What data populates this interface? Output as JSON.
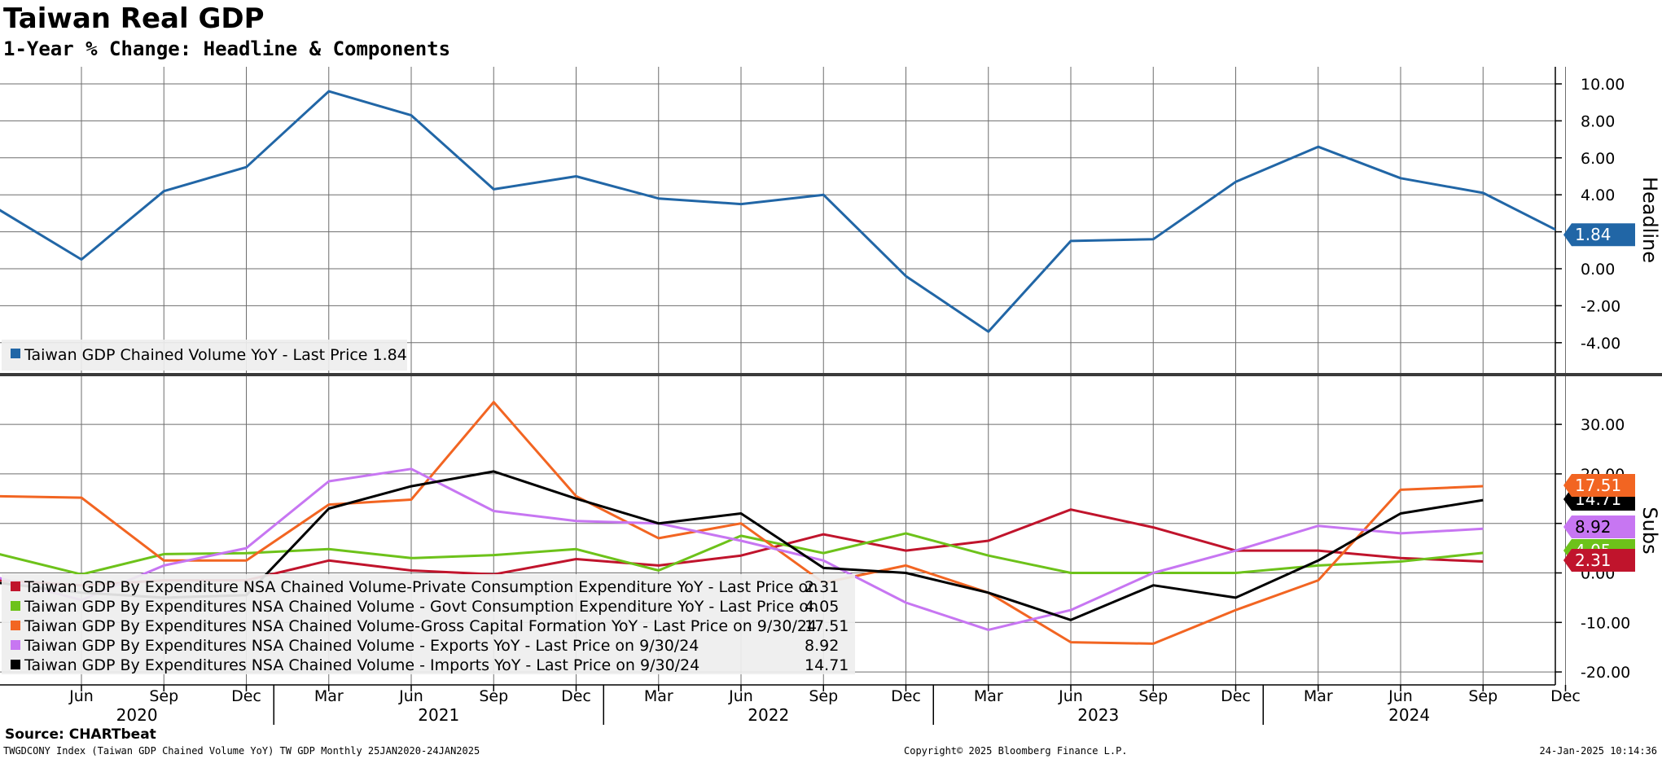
{
  "header": {
    "title": "Taiwan Real GDP",
    "subtitle": "1-Year % Change: Headline & Components"
  },
  "footer": {
    "source": "Source: CHARTbeat",
    "index_info": "TWGDCONY Index (Taiwan GDP Chained Volume YoY) TW GDP  Monthly 25JAN2020-24JAN2025",
    "copyright": "Copyright© 2025 Bloomberg Finance L.P.",
    "timestamp": "24-Jan-2025 10:14:36"
  },
  "chart_data": [
    {
      "type": "line",
      "panel": "top",
      "ylabel": "Headline",
      "ylim": [
        -5,
        10.8
      ],
      "yticks": [
        10,
        8,
        6,
        4,
        2,
        0,
        -2,
        -4
      ],
      "ytick_labels": [
        "10.00",
        "8.00",
        "6.00",
        "4.00",
        "2.00",
        "0.00",
        "-2.00",
        "-4.00"
      ],
      "grid": true,
      "legend_placement": "bottom-left",
      "x": [
        "2020-03",
        "2020-06",
        "2020-09",
        "2020-12",
        "2021-03",
        "2021-06",
        "2021-09",
        "2021-12",
        "2022-03",
        "2022-06",
        "2022-09",
        "2022-12",
        "2023-03",
        "2023-06",
        "2023-09",
        "2023-12",
        "2024-03",
        "2024-06",
        "2024-09",
        "2024-12"
      ],
      "series": [
        {
          "name": "Taiwan GDP Chained Volume YoY",
          "legend_text": "Taiwan GDP Chained Volume YoY - Last Price 1.84",
          "color": "#2166a6",
          "last_label": "1.84",
          "values": [
            3.2,
            0.5,
            4.2,
            5.5,
            9.6,
            8.3,
            4.3,
            5.0,
            3.8,
            3.5,
            4.0,
            -0.4,
            -3.4,
            1.5,
            1.6,
            4.7,
            6.6,
            4.9,
            4.1,
            1.84
          ]
        }
      ]
    },
    {
      "type": "line",
      "panel": "bottom",
      "ylabel": "Subs",
      "ylim": [
        -22,
        36
      ],
      "yticks": [
        30,
        20,
        10,
        0,
        -10,
        -20
      ],
      "ytick_labels": [
        "30.00",
        "20.00",
        "10.00",
        "0.00",
        "-10.00",
        "-20.00"
      ],
      "grid": true,
      "legend_placement": "bottom-left",
      "x": [
        "2020-03",
        "2020-06",
        "2020-09",
        "2020-12",
        "2021-03",
        "2021-06",
        "2021-09",
        "2021-12",
        "2022-03",
        "2022-06",
        "2022-09",
        "2022-12",
        "2023-03",
        "2023-06",
        "2023-09",
        "2023-12",
        "2024-03",
        "2024-06",
        "2024-09"
      ],
      "series": [
        {
          "name": "Taiwan GDP By Expenditure NSA Chained Volume-Private Consumption Expenditure YoY",
          "legend_text": "Taiwan GDP By Expenditure NSA Chained Volume-Private Consumption Expenditure YoY - Last Price on",
          "legend_value": "2.31",
          "color": "#c0142c",
          "last_label": "2.31",
          "values": [
            -1.5,
            -2.5,
            -1.5,
            -1.5,
            2.5,
            0.5,
            -0.3,
            2.8,
            1.5,
            3.5,
            7.8,
            4.5,
            6.5,
            12.8,
            9.2,
            4.5,
            4.5,
            3.0,
            2.31
          ]
        },
        {
          "name": "Taiwan GDP By Expenditures NSA Chained Volume - Govt Consumption Expenditure YoY",
          "legend_text": "Taiwan GDP By Expenditures NSA Chained Volume - Govt Consumption Expenditure YoY - Last Price on",
          "legend_value": "4.05",
          "color": "#6dc21a",
          "last_label": "4.05",
          "values": [
            3.8,
            -0.3,
            3.8,
            4.0,
            4.8,
            3.0,
            3.6,
            4.8,
            0.5,
            7.5,
            4.0,
            8.0,
            3.5,
            0.0,
            0.0,
            0.0,
            1.5,
            2.3,
            4.05
          ]
        },
        {
          "name": "Taiwan GDP By Expenditures NSA Chained Volume-Gross Capital Formation YoY",
          "legend_text": "Taiwan GDP By Expenditures NSA Chained Volume-Gross Capital Formation YoY - Last Price on 9/30/24",
          "legend_value": "17.51",
          "color": "#f26522",
          "last_label": "17.51",
          "values": [
            15.5,
            15.2,
            2.5,
            2.5,
            13.8,
            14.8,
            34.5,
            15.5,
            7.0,
            10.0,
            -2.0,
            1.5,
            -4.0,
            -14.0,
            -14.3,
            -7.5,
            -1.5,
            16.8,
            17.51
          ]
        },
        {
          "name": "Taiwan GDP By Expenditures NSA Chained Volume - Exports YoY",
          "legend_text": "Taiwan GDP By Expenditures NSA Chained Volume - Exports YoY - Last Price on 9/30/24",
          "legend_value": "8.92",
          "color": "#c776f2",
          "last_label": "8.92",
          "values": [
            -1.0,
            -5.5,
            1.5,
            5.0,
            18.5,
            21.0,
            12.5,
            10.5,
            10.0,
            6.5,
            2.5,
            -6.0,
            -11.5,
            -7.5,
            0.0,
            4.5,
            9.5,
            8.0,
            8.92
          ]
        },
        {
          "name": "Taiwan GDP By Expenditures NSA Chained Volume - Imports YoY",
          "legend_text": "Taiwan GDP By Expenditures NSA Chained Volume - Imports YoY - Last Price on 9/30/24",
          "legend_value": "14.71",
          "color": "#000000",
          "last_label": "14.71",
          "values": [
            -2.0,
            -4.0,
            -5.0,
            -4.5,
            13.0,
            17.5,
            20.5,
            15.0,
            10.0,
            12.0,
            1.0,
            0.0,
            -4.0,
            -9.5,
            -2.5,
            -5.0,
            2.5,
            12.0,
            14.71
          ]
        }
      ]
    }
  ],
  "x_axis": {
    "month_ticks": [
      "Jun",
      "Sep",
      "Dec",
      "Mar",
      "Jun",
      "Sep",
      "Dec",
      "Mar",
      "Jun",
      "Sep",
      "Dec",
      "Mar",
      "Jun",
      "Sep",
      "Dec",
      "Mar",
      "Jun",
      "Sep",
      "Dec"
    ],
    "month_tick_dates": [
      "2020-06",
      "2020-09",
      "2020-12",
      "2021-03",
      "2021-06",
      "2021-09",
      "2021-12",
      "2022-03",
      "2022-06",
      "2022-09",
      "2022-12",
      "2023-03",
      "2023-06",
      "2023-09",
      "2023-12",
      "2024-03",
      "2024-06",
      "2024-09",
      "2024-12"
    ],
    "years": [
      "2020",
      "2021",
      "2022",
      "2023",
      "2024"
    ]
  }
}
